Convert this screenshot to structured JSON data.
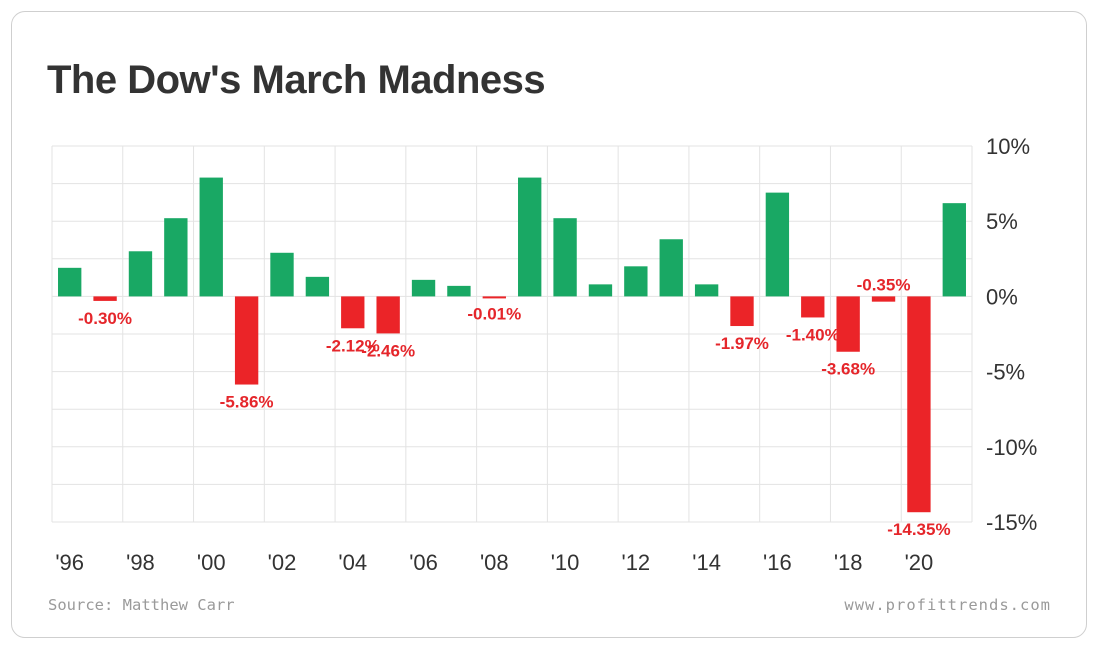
{
  "chart_data": {
    "type": "bar",
    "title": "The Dow's March Madness",
    "categories": [
      "'96",
      "'97",
      "'98",
      "'99",
      "'00",
      "'01",
      "'02",
      "'03",
      "'04",
      "'05",
      "'06",
      "'07",
      "'08",
      "'09",
      "'10",
      "'11",
      "'12",
      "'13",
      "'14",
      "'15",
      "'16",
      "'17",
      "'18",
      "'19",
      "'20",
      "'21"
    ],
    "values": [
      1.9,
      -0.3,
      3.0,
      5.2,
      7.9,
      -5.86,
      2.9,
      1.3,
      -2.12,
      -2.46,
      1.1,
      0.7,
      -0.01,
      7.9,
      5.2,
      0.8,
      2.0,
      3.8,
      0.8,
      -1.97,
      6.9,
      -1.4,
      -3.68,
      -0.35,
      -14.35,
      6.2
    ],
    "data_labels": [
      "",
      "-0.30%",
      "",
      "",
      "",
      "-5.86%",
      "",
      "",
      "-2.12%",
      "-2.46%",
      "",
      "",
      "-0.01%",
      "",
      "",
      "",
      "",
      "",
      "",
      "-1.97%",
      "",
      "-1.40%",
      "-3.68%",
      "-0.35%",
      "-14.35%",
      ""
    ],
    "x_tick_labels": [
      "'96",
      "'98",
      "'00",
      "'02",
      "'04",
      "'06",
      "'08",
      "'10",
      "'12",
      "'14",
      "'16",
      "'18",
      "'20"
    ],
    "y_ticks": [
      10,
      5,
      0,
      -5,
      -10,
      -15
    ],
    "y_tick_labels": [
      "10%",
      "5%",
      "0%",
      "-5%",
      "-10%",
      "-15%"
    ],
    "ylim": [
      -15,
      10
    ],
    "y_axis_side": "right",
    "grid": true,
    "colors": {
      "positive": "#19a864",
      "negative": "#eb2428",
      "label_negative": "#e5262b",
      "grid": "#e3e3e3",
      "axis_text": "#333333"
    }
  },
  "footer": {
    "source": "Source: Matthew Carr",
    "website": "www.profittrends.com"
  }
}
